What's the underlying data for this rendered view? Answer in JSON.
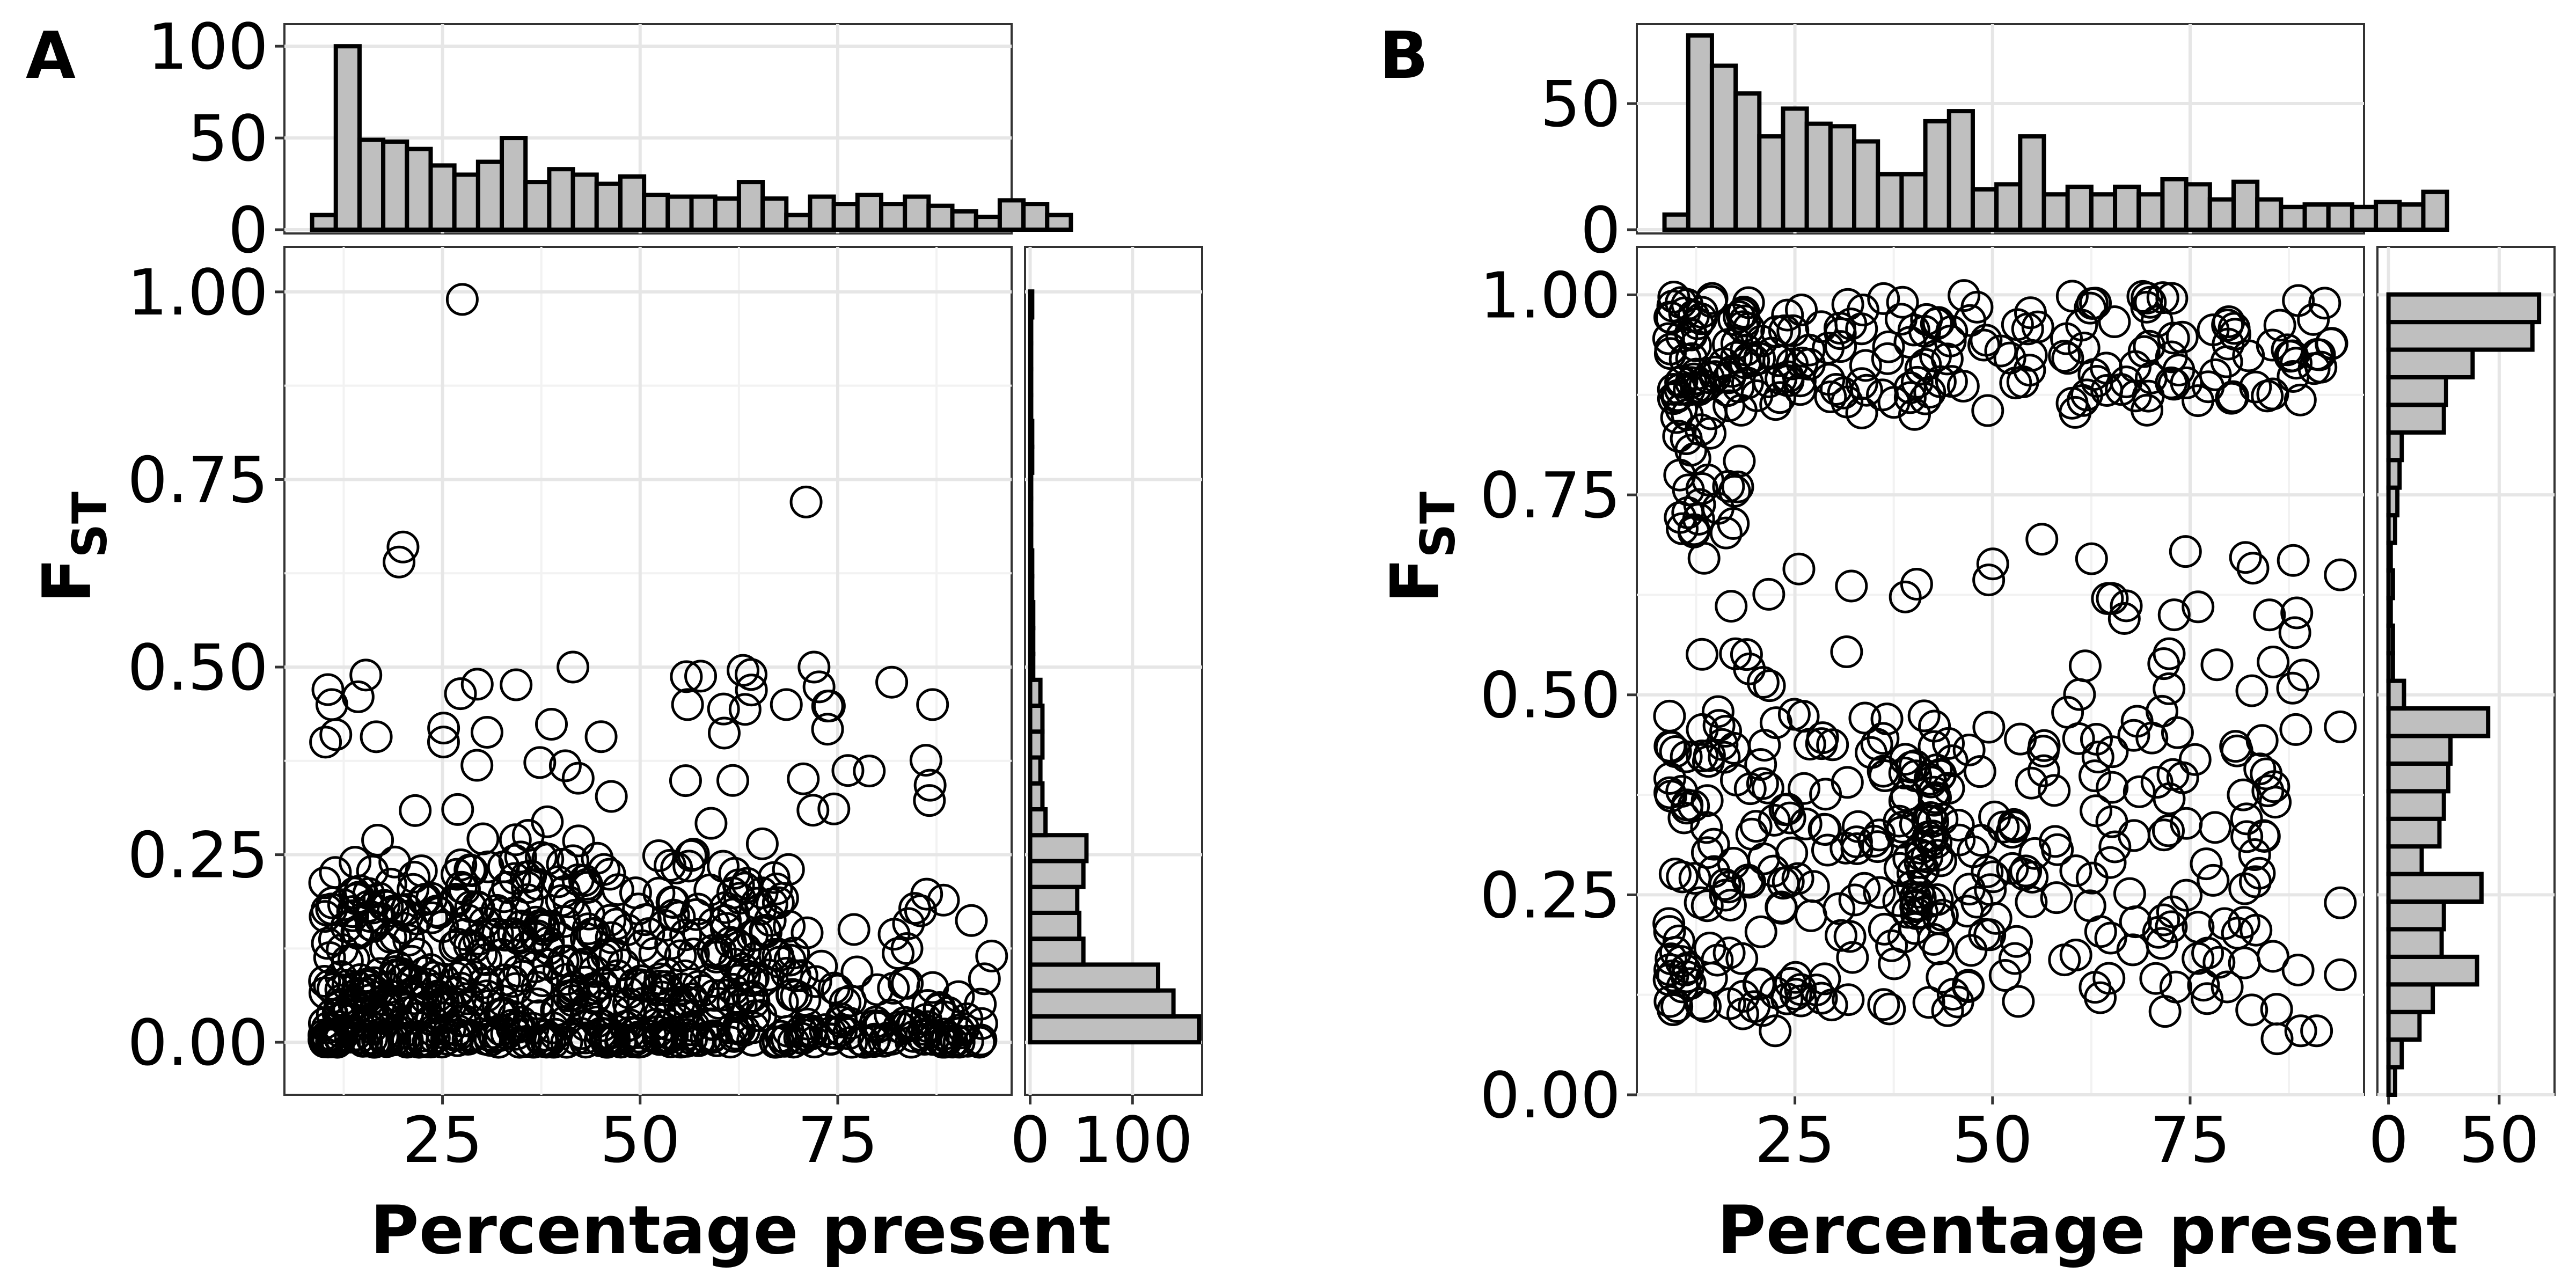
{
  "chart_data": [
    {
      "panel": "A",
      "type": "scatter",
      "xlabel": "Percentage present",
      "ylabel_main": "F",
      "ylabel_sub": "ST",
      "xlim": [
        5,
        97
      ],
      "ylim": [
        -0.07,
        1.06
      ],
      "xticks": [
        25,
        50,
        75
      ],
      "yticks": [
        0.0,
        0.25,
        0.5,
        0.75,
        1.0
      ],
      "ytick_labels": [
        "0.00",
        "0.25",
        "0.50",
        "0.75",
        "1.00"
      ],
      "top_hist": {
        "type": "bar",
        "bin_width": 3,
        "bin_start": 8.5,
        "counts": [
          8,
          100,
          49,
          48,
          44,
          35,
          30,
          37,
          50,
          26,
          33,
          30,
          25,
          29,
          19,
          18,
          18,
          17,
          26,
          17,
          8,
          18,
          14,
          19,
          14,
          18,
          13,
          10,
          7,
          16,
          14,
          8
        ],
        "ylim": [
          0,
          110
        ],
        "yticks": [
          0,
          50,
          100
        ]
      },
      "right_hist": {
        "type": "bar",
        "bin_width": 0.0345,
        "bins_from": 0.0,
        "counts": [
          165,
          140,
          125,
          52,
          48,
          46,
          52,
          55,
          15,
          12,
          10,
          12,
          12,
          10,
          3,
          3,
          3,
          2,
          2,
          1,
          1,
          1,
          2,
          2,
          1,
          1,
          1,
          1,
          2
        ],
        "xlim": [
          -5,
          168
        ],
        "xticks": [
          0,
          100
        ]
      },
      "n_points_approx": 720
    },
    {
      "panel": "B",
      "type": "scatter",
      "xlabel": "Percentage present",
      "ylabel_main": "F",
      "ylabel_sub": "ST",
      "xlim": [
        5,
        97
      ],
      "ylim": [
        0.0,
        1.06
      ],
      "xticks": [
        25,
        50,
        75
      ],
      "yticks": [
        0.0,
        0.25,
        0.5,
        0.75,
        1.0
      ],
      "ytick_labels": [
        "0.00",
        "0.25",
        "0.50",
        "0.75",
        "1.00"
      ],
      "top_hist": {
        "type": "bar",
        "bin_width": 3,
        "bin_start": 8.5,
        "counts": [
          6,
          77,
          65,
          54,
          37,
          48,
          42,
          41,
          35,
          22,
          22,
          43,
          47,
          16,
          18,
          37,
          14,
          17,
          14,
          17,
          14,
          20,
          18,
          12,
          19,
          12,
          9,
          10,
          10,
          9,
          11,
          10,
          15
        ],
        "ylim": [
          0,
          80
        ],
        "yticks": [
          0,
          50
        ]
      },
      "right_hist": {
        "type": "bar",
        "bin_width": 0.0345,
        "bins_from": 0.0,
        "counts": [
          3,
          6,
          14,
          20,
          40,
          24,
          25,
          42,
          15,
          23,
          25,
          27,
          28,
          45,
          7,
          2,
          2,
          1,
          2,
          1,
          3,
          4,
          5,
          6,
          25,
          26,
          38,
          65,
          68
        ],
        "xlim": [
          -5,
          75
        ],
        "xticks": [
          0,
          50
        ]
      },
      "n_points_approx": 640
    }
  ],
  "labels": {
    "panel_a": "A",
    "panel_b": "B"
  }
}
